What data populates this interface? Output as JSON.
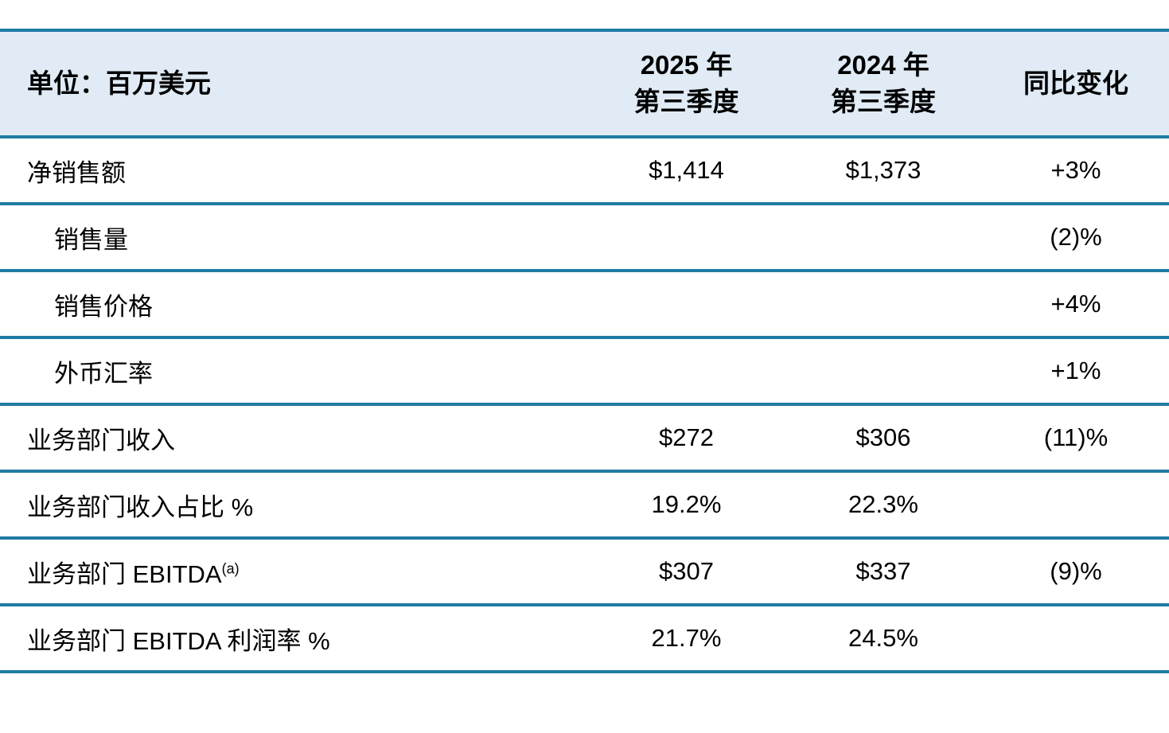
{
  "page": {
    "background": "#ffffff"
  },
  "table": {
    "unit_label": "单位：百万美元",
    "columns": {
      "q3_2025": {
        "line1": "2025 年",
        "line2": "第三季度"
      },
      "q3_2024": {
        "line1": "2024 年",
        "line2": "第三季度"
      },
      "yoy": {
        "label": "同比变化"
      }
    },
    "rows": [
      {
        "label": "净销售额",
        "indent": false,
        "q3_2025": "$1,414",
        "q3_2024": "$1,373",
        "yoy": "+3%"
      },
      {
        "label": "销售量",
        "indent": true,
        "q3_2025": "",
        "q3_2024": "",
        "yoy": "(2)%"
      },
      {
        "label": "销售价格",
        "indent": true,
        "q3_2025": "",
        "q3_2024": "",
        "yoy": "+4%"
      },
      {
        "label": "外币汇率",
        "indent": true,
        "q3_2025": "",
        "q3_2024": "",
        "yoy": "+1%"
      },
      {
        "label": "业务部门收入",
        "indent": false,
        "q3_2025": "$272",
        "q3_2024": "$306",
        "yoy": "(11)%"
      },
      {
        "label": "业务部门收入占比 %",
        "indent": false,
        "q3_2025": "19.2%",
        "q3_2024": "22.3%",
        "yoy": ""
      },
      {
        "label": "业务部门 EBITDA",
        "superscript": "(a)",
        "indent": false,
        "q3_2025": "$307",
        "q3_2024": "$337",
        "yoy": "(9)%"
      },
      {
        "label": "业务部门 EBITDA 利润率 %",
        "indent": false,
        "q3_2025": "21.7%",
        "q3_2024": "24.5%",
        "yoy": ""
      }
    ],
    "colors": {
      "header_bg": "#e0ebf5",
      "divider_line": "#1f7ba3",
      "text": "#000000",
      "page_bg": "#ffffff"
    }
  }
}
